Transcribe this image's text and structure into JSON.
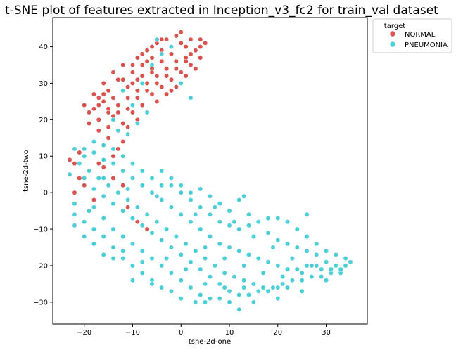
{
  "chart_data": {
    "type": "scatter",
    "title": "t-SNE plot of features extracted in Inception_v3_fc2 for train_val dataset",
    "xlabel": "tsne-2d-one",
    "ylabel": "tsne-2d-two",
    "xlim": [
      -26.5,
      38.5
    ],
    "ylim": [
      -36,
      48
    ],
    "xticks": [
      -20,
      -10,
      0,
      10,
      20,
      30
    ],
    "yticks": [
      -30,
      -20,
      -10,
      0,
      10,
      20,
      30,
      40
    ],
    "grid": false,
    "legend": {
      "placement": "outside-top-right",
      "title": "target",
      "entries": [
        "NORMAL",
        "PNEUMONIA"
      ]
    },
    "series": [
      {
        "name": "NORMAL",
        "color": "#d9534f",
        "description_clusters": [
          {
            "xRange": [
              -21,
              5
            ],
            "yRange": [
              15,
              44
            ],
            "shape": "diagonal-band"
          },
          {
            "xRange": [
              -23,
              -12
            ],
            "yRange": [
              -3,
              12
            ],
            "shape": "sparse"
          }
        ],
        "points": [
          [
            -17,
            24
          ],
          [
            -15,
            28
          ],
          [
            -13,
            31
          ],
          [
            -10,
            33
          ],
          [
            -8,
            35
          ],
          [
            -6,
            37
          ],
          [
            -4,
            39
          ],
          [
            -2,
            40
          ],
          [
            0,
            41
          ],
          [
            2,
            42
          ],
          [
            4,
            42
          ],
          [
            5,
            41
          ],
          [
            3,
            39
          ],
          [
            1,
            37
          ],
          [
            -1,
            36
          ],
          [
            -3,
            34
          ],
          [
            -5,
            32
          ],
          [
            -7,
            30
          ],
          [
            -9,
            28
          ],
          [
            -11,
            26
          ],
          [
            -13,
            24
          ],
          [
            -15,
            22
          ],
          [
            -17,
            20
          ],
          [
            -19,
            22
          ],
          [
            -20,
            24
          ],
          [
            -18,
            27
          ],
          [
            -16,
            30
          ],
          [
            -14,
            33
          ],
          [
            -12,
            35
          ],
          [
            -9,
            37
          ],
          [
            -7,
            39
          ],
          [
            -5,
            41
          ],
          [
            -3,
            42
          ],
          [
            -1,
            43
          ],
          [
            0,
            44
          ],
          [
            1,
            40
          ],
          [
            -2,
            38
          ],
          [
            -4,
            36
          ],
          [
            -6,
            34
          ],
          [
            -8,
            32
          ],
          [
            -10,
            30
          ],
          [
            -12,
            28
          ],
          [
            -14,
            26
          ],
          [
            -16,
            25
          ],
          [
            -14,
            21
          ],
          [
            -12,
            19
          ],
          [
            -10,
            22
          ],
          [
            -8,
            24
          ],
          [
            -6,
            27
          ],
          [
            -4,
            29
          ],
          [
            -2,
            31
          ],
          [
            0,
            33
          ],
          [
            2,
            35
          ],
          [
            4,
            37
          ],
          [
            3,
            34
          ],
          [
            1,
            32
          ],
          [
            -1,
            29
          ],
          [
            -3,
            27
          ],
          [
            -5,
            25
          ],
          [
            -7,
            22
          ],
          [
            -9,
            20
          ],
          [
            -11,
            18
          ],
          [
            -13,
            17
          ],
          [
            -15,
            18
          ],
          [
            -11,
            23
          ],
          [
            -9,
            26
          ],
          [
            -7,
            28
          ],
          [
            -5,
            30
          ],
          [
            -3,
            32
          ],
          [
            -1,
            34
          ],
          [
            1,
            36
          ],
          [
            -12,
            31
          ],
          [
            -10,
            35
          ],
          [
            -8,
            38
          ],
          [
            -6,
            40
          ],
          [
            -4,
            42
          ],
          [
            -16,
            27
          ],
          [
            -18,
            23
          ],
          [
            -19,
            19
          ],
          [
            -17,
            17
          ],
          [
            -15,
            15
          ],
          [
            -12,
            14
          ],
          [
            -13,
            12
          ],
          [
            -14,
            10
          ],
          [
            -17,
            8
          ],
          [
            -19,
            6
          ],
          [
            -21,
            4
          ],
          [
            -22,
            8
          ],
          [
            -20,
            2
          ],
          [
            -18,
            -2
          ],
          [
            -22,
            0
          ],
          [
            -23,
            9
          ],
          [
            -18,
            11
          ],
          [
            -21,
            11
          ],
          [
            -16,
            7
          ],
          [
            -12,
            2
          ],
          [
            -14,
            4
          ],
          [
            -11,
            -4
          ],
          [
            -9,
            -8
          ],
          [
            -7,
            -10
          ],
          [
            -2,
            28
          ],
          [
            -6,
            33
          ],
          [
            -11,
            29
          ],
          [
            -13,
            22
          ],
          [
            -9,
            31
          ],
          [
            -7,
            36
          ],
          [
            2,
            38
          ],
          [
            4,
            40
          ],
          [
            -15,
            23
          ],
          [
            -17,
            26
          ]
        ]
      },
      {
        "name": "PNEUMONIA",
        "color": "#4ccfd6",
        "description_clusters": [
          {
            "xRange": [
              -23,
              35
            ],
            "yRange": [
              -32,
              15
            ],
            "shape": "large-band"
          },
          {
            "xRange": [
              -14,
              3
            ],
            "yRange": [
              15,
              42
            ],
            "shape": "sparse-overlap"
          }
        ],
        "points": [
          [
            -22,
            12
          ],
          [
            -20,
            10
          ],
          [
            -18,
            11
          ],
          [
            -16,
            9
          ],
          [
            -14,
            8
          ],
          [
            -12,
            6
          ],
          [
            -10,
            4
          ],
          [
            -8,
            2
          ],
          [
            -6,
            0
          ],
          [
            -4,
            -2
          ],
          [
            -2,
            -4
          ],
          [
            0,
            -6
          ],
          [
            2,
            -8
          ],
          [
            4,
            -10
          ],
          [
            6,
            -12
          ],
          [
            8,
            -14
          ],
          [
            10,
            -15
          ],
          [
            12,
            -16
          ],
          [
            14,
            -17
          ],
          [
            16,
            -18
          ],
          [
            18,
            -19
          ],
          [
            20,
            -20
          ],
          [
            22,
            -21
          ],
          [
            24,
            -21
          ],
          [
            26,
            -20
          ],
          [
            28,
            -20
          ],
          [
            30,
            -19
          ],
          [
            32,
            -20
          ],
          [
            34,
            -20
          ],
          [
            35,
            -19
          ],
          [
            -21,
            8
          ],
          [
            -19,
            6
          ],
          [
            -17,
            4
          ],
          [
            -15,
            2
          ],
          [
            -13,
            0
          ],
          [
            -11,
            -2
          ],
          [
            -9,
            -4
          ],
          [
            -7,
            -6
          ],
          [
            -5,
            -8
          ],
          [
            -3,
            -10
          ],
          [
            -1,
            -12
          ],
          [
            1,
            -14
          ],
          [
            3,
            -16
          ],
          [
            5,
            -18
          ],
          [
            7,
            -20
          ],
          [
            9,
            -22
          ],
          [
            11,
            -23
          ],
          [
            13,
            -24
          ],
          [
            15,
            -25
          ],
          [
            17,
            -26
          ],
          [
            19,
            -26
          ],
          [
            21,
            -25
          ],
          [
            23,
            -24
          ],
          [
            25,
            -24
          ],
          [
            27,
            -23
          ],
          [
            29,
            -23
          ],
          [
            31,
            -22
          ],
          [
            33,
            -22
          ],
          [
            -20,
            4
          ],
          [
            -18,
            1
          ],
          [
            -16,
            -1
          ],
          [
            -14,
            -3
          ],
          [
            -12,
            -5
          ],
          [
            -10,
            -7
          ],
          [
            -8,
            -9
          ],
          [
            -6,
            -11
          ],
          [
            -4,
            -13
          ],
          [
            -2,
            -15
          ],
          [
            0,
            -17
          ],
          [
            2,
            -19
          ],
          [
            4,
            -21
          ],
          [
            6,
            -23
          ],
          [
            8,
            -25
          ],
          [
            10,
            -27
          ],
          [
            12,
            -28
          ],
          [
            14,
            -28
          ],
          [
            16,
            -27
          ],
          [
            18,
            -27
          ],
          [
            20,
            -26
          ],
          [
            22,
            -26
          ],
          [
            -18,
            -4
          ],
          [
            -16,
            -7
          ],
          [
            -14,
            -10
          ],
          [
            -12,
            -12
          ],
          [
            -10,
            -14
          ],
          [
            -8,
            -16
          ],
          [
            -6,
            -18
          ],
          [
            -4,
            -20
          ],
          [
            -2,
            -22
          ],
          [
            0,
            -24
          ],
          [
            2,
            -26
          ],
          [
            4,
            -28
          ],
          [
            6,
            -29
          ],
          [
            8,
            -29
          ],
          [
            -16,
            -12
          ],
          [
            -14,
            -15
          ],
          [
            -12,
            -18
          ],
          [
            -10,
            -20
          ],
          [
            -8,
            -22
          ],
          [
            -6,
            -24
          ],
          [
            -20,
            -8
          ],
          [
            -18,
            -10
          ],
          [
            -22,
            -3
          ],
          [
            -23,
            5
          ],
          [
            -22,
            -9
          ],
          [
            -14,
            -18
          ],
          [
            -10,
            -24
          ],
          [
            -6,
            -25
          ],
          [
            -2,
            -27
          ],
          [
            0,
            -29
          ],
          [
            3,
            -30
          ],
          [
            5,
            -30
          ],
          [
            12,
            -32
          ],
          [
            -16,
            -17
          ],
          [
            -18,
            -14
          ],
          [
            -4,
            6
          ],
          [
            -2,
            2
          ],
          [
            0,
            0
          ],
          [
            2,
            -2
          ],
          [
            4,
            -4
          ],
          [
            6,
            -6
          ],
          [
            8,
            -8
          ],
          [
            10,
            -9
          ],
          [
            12,
            -10
          ],
          [
            14,
            -9
          ],
          [
            16,
            -8
          ],
          [
            18,
            -7
          ],
          [
            20,
            -7
          ],
          [
            22,
            -8
          ],
          [
            24,
            -10
          ],
          [
            26,
            -12
          ],
          [
            28,
            -14
          ],
          [
            30,
            -16
          ],
          [
            32,
            -17
          ],
          [
            34,
            -18
          ],
          [
            18,
            -11
          ],
          [
            20,
            -13
          ],
          [
            22,
            -14
          ],
          [
            24,
            -15
          ],
          [
            26,
            -16
          ],
          [
            28,
            -17
          ],
          [
            14,
            -6
          ],
          [
            12,
            -2
          ],
          [
            13,
            -1
          ],
          [
            10,
            -5
          ],
          [
            8,
            -3
          ],
          [
            6,
            -1
          ],
          [
            4,
            1
          ],
          [
            2,
            0
          ],
          [
            0,
            2
          ],
          [
            -2,
            4
          ],
          [
            -4,
            2
          ],
          [
            -6,
            4
          ],
          [
            -8,
            6
          ],
          [
            -10,
            8
          ],
          [
            -12,
            10
          ],
          [
            -14,
            12
          ],
          [
            -16,
            13
          ],
          [
            -18,
            14
          ],
          [
            -20,
            12
          ],
          [
            -12,
            28
          ],
          [
            -10,
            24
          ],
          [
            -8,
            30
          ],
          [
            -6,
            35
          ],
          [
            -4,
            38
          ],
          [
            -2,
            40
          ],
          [
            -5,
            42
          ],
          [
            -14,
            20
          ],
          [
            -13,
            17
          ],
          [
            -11,
            16
          ],
          [
            -9,
            19
          ],
          [
            -7,
            22
          ],
          [
            0,
            30
          ],
          [
            2,
            26
          ],
          [
            26,
            -6
          ],
          [
            30,
            -24
          ],
          [
            25,
            -27
          ],
          [
            20,
            -29
          ],
          [
            15,
            -30
          ],
          [
            10,
            -30
          ],
          [
            -4,
            -26
          ],
          [
            -8,
            -19
          ],
          [
            -12,
            -16
          ],
          [
            -20,
            -12
          ],
          [
            -22,
            -6
          ],
          [
            -16,
            4
          ],
          [
            -19,
            -5
          ],
          [
            -11,
            1
          ],
          [
            -5,
            -1
          ],
          [
            3,
            -6
          ],
          [
            7,
            -4
          ],
          [
            11,
            -8
          ],
          [
            15,
            -12
          ],
          [
            19,
            -15
          ],
          [
            23,
            -18
          ],
          [
            27,
            -20
          ],
          [
            31,
            -21
          ],
          [
            5,
            -15
          ],
          [
            9,
            -18
          ],
          [
            13,
            -20
          ],
          [
            17,
            -22
          ],
          [
            21,
            -23
          ],
          [
            25,
            -22
          ],
          [
            29,
            -21
          ],
          [
            33,
            -21
          ],
          [
            -3,
            -18
          ],
          [
            1,
            -21
          ],
          [
            5,
            -25
          ],
          [
            9,
            -26
          ],
          [
            13,
            -26
          ]
        ]
      }
    ]
  }
}
